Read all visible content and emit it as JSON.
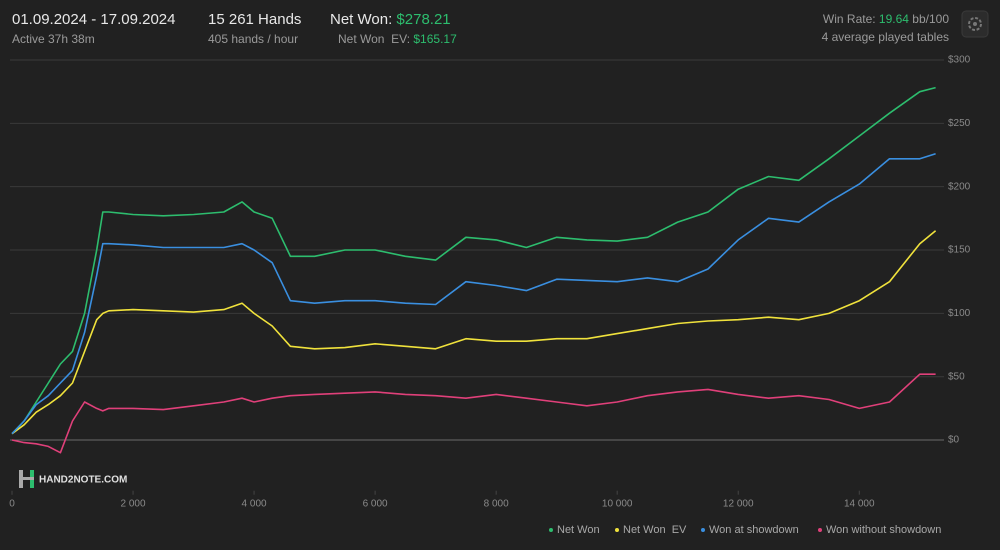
{
  "header": {
    "date_range": "01.09.2024 - 17.09.2024",
    "active": "Active 37h 38m",
    "hands": "15 261 Hands",
    "hands_per_hour": "405 hands / hour",
    "net_won_label": "Net Won: ",
    "net_won_value": "$278.21",
    "net_won_ev_label": "Net Won  EV: ",
    "net_won_ev_value": "$165.17",
    "win_rate_label": "Win Rate: ",
    "win_rate_value": "19.64",
    "win_rate_unit": " bb/100",
    "tables": "4 average played tables",
    "logo": "HAND2NOTE.COM"
  },
  "chart_data": {
    "type": "line",
    "x": [
      0,
      200,
      400,
      600,
      800,
      1000,
      1200,
      1400,
      1500,
      1600,
      2000,
      2500,
      3000,
      3500,
      3800,
      4000,
      4300,
      4600,
      5000,
      5500,
      6000,
      6500,
      7000,
      7500,
      8000,
      8500,
      9000,
      9500,
      10000,
      10500,
      11000,
      11500,
      12000,
      12500,
      13000,
      13500,
      14000,
      14500,
      15000,
      15261
    ],
    "series": [
      {
        "name": "Net Won",
        "color": "#2dbd6e",
        "values": [
          5,
          15,
          30,
          45,
          60,
          70,
          100,
          150,
          180,
          180,
          178,
          177,
          178,
          180,
          188,
          180,
          175,
          145,
          145,
          150,
          150,
          145,
          142,
          160,
          158,
          152,
          160,
          158,
          157,
          160,
          172,
          180,
          198,
          208,
          205,
          222,
          240,
          258,
          275,
          278.21
        ]
      },
      {
        "name": "Net Won  EV",
        "color": "#f0e23c",
        "values": [
          5,
          12,
          22,
          28,
          35,
          45,
          70,
          95,
          100,
          102,
          103,
          102,
          101,
          103,
          108,
          100,
          90,
          74,
          72,
          73,
          76,
          74,
          72,
          80,
          78,
          78,
          80,
          80,
          84,
          88,
          92,
          94,
          95,
          97,
          95,
          100,
          110,
          125,
          155,
          165.17
        ]
      },
      {
        "name": "Won at showdown",
        "color": "#3a8fe0",
        "values": [
          5,
          15,
          28,
          35,
          45,
          55,
          85,
          130,
          155,
          155,
          154,
          152,
          152,
          152,
          155,
          150,
          140,
          110,
          108,
          110,
          110,
          108,
          107,
          125,
          122,
          118,
          127,
          126,
          125,
          128,
          125,
          135,
          158,
          175,
          172,
          188,
          202,
          222,
          222,
          226
        ]
      },
      {
        "name": "Won without showdown",
        "color": "#e0407a",
        "values": [
          0,
          -2,
          -3,
          -5,
          -10,
          15,
          30,
          25,
          23,
          25,
          25,
          24,
          27,
          30,
          33,
          30,
          33,
          35,
          36,
          37,
          38,
          36,
          35,
          33,
          36,
          33,
          30,
          27,
          30,
          35,
          38,
          40,
          36,
          33,
          35,
          32,
          25,
          30,
          52,
          52
        ]
      }
    ],
    "xlim": [
      0,
      15400
    ],
    "xticks": [
      0,
      {
        "value": 2000,
        "label": "2 000"
      },
      {
        "value": 4000,
        "label": "4 000"
      },
      {
        "value": 6000,
        "label": "6 000"
      },
      {
        "value": 8000,
        "label": "8 000"
      },
      {
        "value": 10000,
        "label": "10 000"
      },
      {
        "value": 12000,
        "label": "12 000"
      },
      {
        "value": 14000,
        "label": "14 000"
      }
    ],
    "ylim": [
      -40,
      300
    ],
    "yticks": [
      {
        "value": 0,
        "label": "$0"
      },
      {
        "value": 50,
        "label": "$50"
      },
      {
        "value": 100,
        "label": "$100"
      },
      {
        "value": 150,
        "label": "$150"
      },
      {
        "value": 200,
        "label": "$200"
      },
      {
        "value": 250,
        "label": "$250"
      },
      {
        "value": 300,
        "label": "$300"
      }
    ],
    "grid": true
  }
}
